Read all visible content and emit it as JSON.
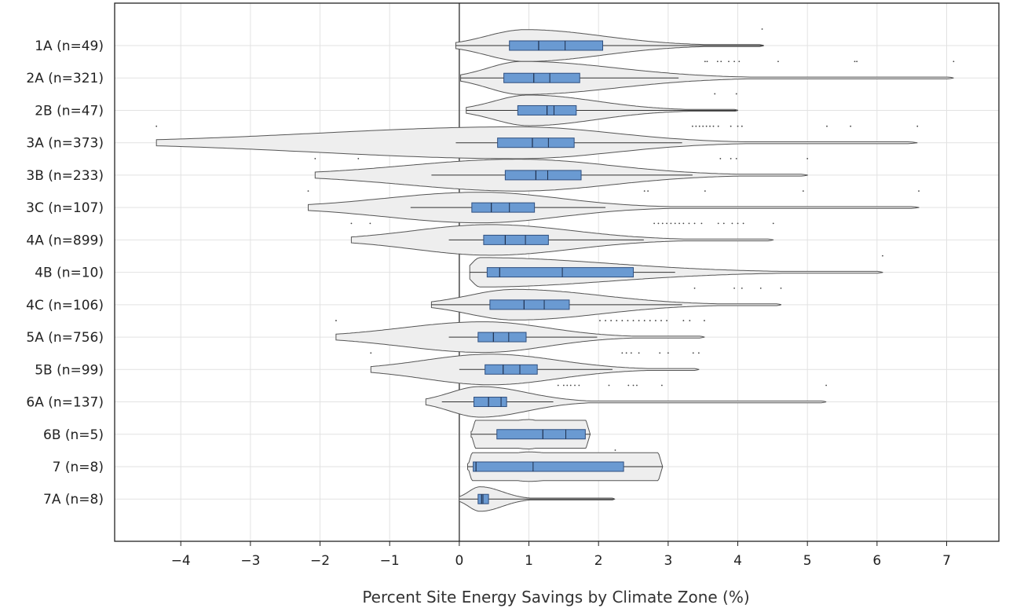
{
  "chart_data": {
    "type": "violin",
    "xlabel": "Percent Site Energy Savings by Climate Zone (%)",
    "xlim": [
      -4.95,
      7.75
    ],
    "xticks": [
      -4,
      -3,
      -2,
      -1,
      0,
      1,
      2,
      3,
      4,
      5,
      6,
      7
    ],
    "xtick_labels": [
      "−4",
      "−3",
      "−2",
      "−1",
      "0",
      "1",
      "2",
      "3",
      "4",
      "5",
      "6",
      "7"
    ],
    "grid": true,
    "reference_line_x": 0,
    "colors": {
      "box_fill": "#6a9ad2",
      "box_edge": "#2f4f7f",
      "violin_fill": "#eeeeee",
      "violin_edge": "#555555",
      "grid": "#e2e2e2"
    },
    "categories": [
      {
        "label": "1A (n=49)",
        "violin": [
          -0.05,
          4.37
        ],
        "whisker": [
          -0.05,
          4.37
        ],
        "q1": 0.72,
        "median": 1.14,
        "mean": 1.52,
        "q3": 2.06,
        "mode": 0.95,
        "width": 0.52,
        "outliers": [
          4.35
        ]
      },
      {
        "label": "2A (n=321)",
        "violin": [
          0.02,
          7.1
        ],
        "whisker": [
          0.02,
          3.15
        ],
        "q1": 0.64,
        "median": 1.07,
        "mean": 1.3,
        "q3": 1.73,
        "mode": 0.9,
        "width": 0.54,
        "outliers": [
          3.53,
          3.56,
          3.71,
          3.76,
          3.87,
          3.95,
          4.02,
          4.58,
          5.68,
          5.71,
          7.1
        ]
      },
      {
        "label": "2B (n=47)",
        "violin": [
          0.1,
          4.0
        ],
        "whisker": [
          0.1,
          3.98
        ],
        "q1": 0.84,
        "median": 1.26,
        "mean": 1.36,
        "q3": 1.68,
        "mode": 1.0,
        "width": 0.5,
        "outliers": [
          3.67,
          3.98
        ]
      },
      {
        "label": "3A (n=373)",
        "violin": [
          -4.35,
          6.58
        ],
        "whisker": [
          -0.05,
          3.2
        ],
        "q1": 0.55,
        "median": 1.05,
        "mean": 1.28,
        "q3": 1.65,
        "mode": 0.85,
        "width": 0.52,
        "outliers": [
          -4.35,
          3.35,
          3.4,
          3.45,
          3.5,
          3.55,
          3.6,
          3.65,
          3.72,
          3.9,
          4.0,
          4.06,
          5.28,
          5.62,
          6.58
        ]
      },
      {
        "label": "3B (n=233)",
        "violin": [
          -2.07,
          5.0
        ],
        "whisker": [
          -0.4,
          3.35
        ],
        "q1": 0.66,
        "median": 1.1,
        "mean": 1.27,
        "q3": 1.75,
        "mode": 0.85,
        "width": 0.52,
        "outliers": [
          -2.07,
          -1.45,
          3.75,
          3.9,
          3.98,
          5.0
        ]
      },
      {
        "label": "3C (n=107)",
        "violin": [
          -2.17,
          6.6
        ],
        "whisker": [
          -0.7,
          2.1
        ],
        "q1": 0.18,
        "median": 0.46,
        "mean": 0.72,
        "q3": 1.08,
        "mode": 0.3,
        "width": 0.5,
        "outliers": [
          -2.17,
          2.66,
          2.71,
          3.53,
          4.94,
          6.6
        ]
      },
      {
        "label": "4A (n=899)",
        "violin": [
          -1.55,
          4.51
        ],
        "whisker": [
          -0.15,
          2.65
        ],
        "q1": 0.35,
        "median": 0.66,
        "mean": 0.95,
        "q3": 1.28,
        "mode": 0.45,
        "width": 0.5,
        "outliers": [
          -1.55,
          -1.28,
          2.8,
          2.86,
          2.92,
          2.98,
          3.04,
          3.1,
          3.16,
          3.22,
          3.3,
          3.38,
          3.48,
          3.72,
          3.8,
          3.92,
          4.0,
          4.08,
          4.51
        ]
      },
      {
        "label": "4B (n=10)",
        "violin": [
          0.15,
          6.08
        ],
        "whisker": [
          0.15,
          3.1
        ],
        "q1": 0.4,
        "median": 0.58,
        "mean": 1.48,
        "q3": 2.5,
        "mode": 0.3,
        "width": 0.48,
        "outliers": [
          6.08
        ]
      },
      {
        "label": "4C (n=106)",
        "violin": [
          -0.4,
          4.62
        ],
        "whisker": [
          -0.4,
          3.2
        ],
        "q1": 0.44,
        "median": 0.93,
        "mean": 1.22,
        "q3": 1.58,
        "mode": 0.8,
        "width": 0.5,
        "outliers": [
          3.38,
          3.95,
          4.06,
          4.33,
          4.62
        ]
      },
      {
        "label": "5A (n=756)",
        "violin": [
          -1.77,
          3.52
        ],
        "whisker": [
          -0.15,
          1.98
        ],
        "q1": 0.27,
        "median": 0.49,
        "mean": 0.71,
        "q3": 0.96,
        "mode": 0.35,
        "width": 0.5,
        "outliers": [
          -1.77,
          2.02,
          2.1,
          2.18,
          2.26,
          2.34,
          2.42,
          2.5,
          2.58,
          2.66,
          2.74,
          2.82,
          2.9,
          2.98,
          3.22,
          3.31,
          3.52
        ]
      },
      {
        "label": "5B (n=99)",
        "violin": [
          -1.27,
          3.44
        ],
        "whisker": [
          0.0,
          2.2
        ],
        "q1": 0.37,
        "median": 0.63,
        "mean": 0.87,
        "q3": 1.12,
        "mode": 0.45,
        "width": 0.5,
        "outliers": [
          -1.27,
          2.34,
          2.4,
          2.47,
          2.58,
          2.88,
          3.0,
          3.36,
          3.44
        ]
      },
      {
        "label": "6A (n=137)",
        "violin": [
          -0.48,
          5.27
        ],
        "whisker": [
          -0.25,
          1.35
        ],
        "q1": 0.21,
        "median": 0.42,
        "mean": 0.6,
        "q3": 0.68,
        "mode": 0.3,
        "width": 0.5,
        "outliers": [
          1.42,
          1.5,
          1.55,
          1.6,
          1.66,
          1.72,
          2.15,
          2.43,
          2.5,
          2.55,
          2.91,
          5.27
        ]
      },
      {
        "label": "6B (n=5)",
        "violin": [
          0.17,
          1.88
        ],
        "whisker": [
          0.17,
          1.88
        ],
        "q1": 0.54,
        "median": 1.2,
        "mean": 1.53,
        "q3": 1.81,
        "mode": 1.0,
        "width": 0.48,
        "outliers": []
      },
      {
        "label": "7 (n=8)",
        "violin": [
          0.12,
          2.92
        ],
        "whisker": [
          0.12,
          2.92
        ],
        "q1": 0.2,
        "median": 0.24,
        "mean": 1.06,
        "q3": 2.36,
        "mode": 1.0,
        "width": 0.48,
        "outliers": [
          2.24
        ]
      },
      {
        "label": "7A (n=8)",
        "violin": [
          0.0,
          2.23
        ],
        "whisker": [
          0.0,
          2.23
        ],
        "q1": 0.27,
        "median": 0.32,
        "mean": 0.34,
        "q3": 0.42,
        "mode": 0.3,
        "width": 0.4,
        "outliers": []
      }
    ]
  }
}
